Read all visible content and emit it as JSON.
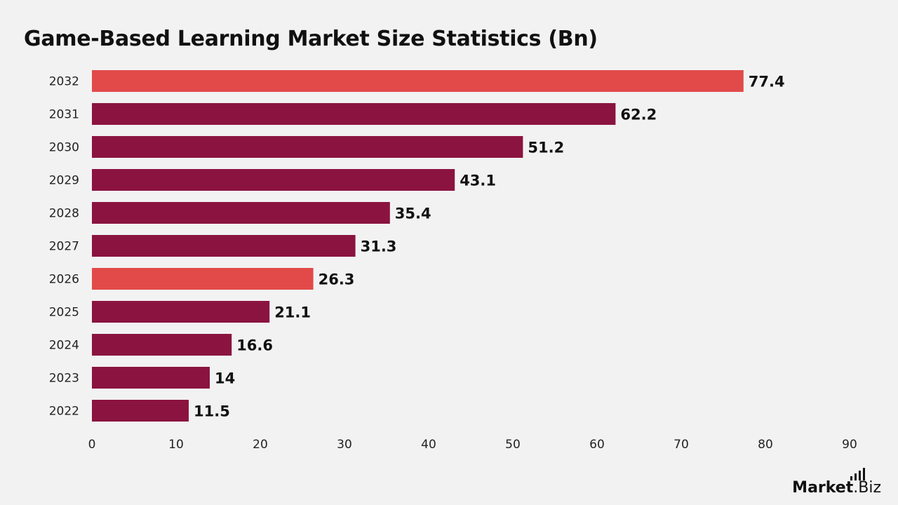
{
  "page": {
    "title": "Game-Based Learning Market Size Statistics (Bn)"
  },
  "logo": {
    "brand": "Market",
    "suffix": ".Biz"
  },
  "chart_data": {
    "type": "bar",
    "orientation": "horizontal",
    "title": "Game-Based Learning Market Size Statistics (Bn)",
    "xlabel": "",
    "ylabel": "",
    "categories": [
      "2032",
      "2031",
      "2030",
      "2029",
      "2028",
      "2027",
      "2026",
      "2025",
      "2024",
      "2023",
      "2022"
    ],
    "values": [
      77.4,
      62.2,
      51.2,
      43.1,
      35.4,
      31.3,
      26.3,
      21.1,
      16.6,
      14,
      11.5
    ],
    "value_labels": [
      "77.4",
      "62.2",
      "51.2",
      "43.1",
      "35.4",
      "31.3",
      "26.3",
      "21.1",
      "16.6",
      "14",
      "11.5"
    ],
    "highlighted": [
      "2032",
      "2026"
    ],
    "xlim": [
      0,
      90
    ],
    "xticks": [
      0,
      10,
      20,
      30,
      40,
      50,
      60,
      70,
      80,
      90
    ],
    "grid": false,
    "colors": {
      "bar": "#8b1340",
      "highlight": "#e24a4a"
    }
  }
}
